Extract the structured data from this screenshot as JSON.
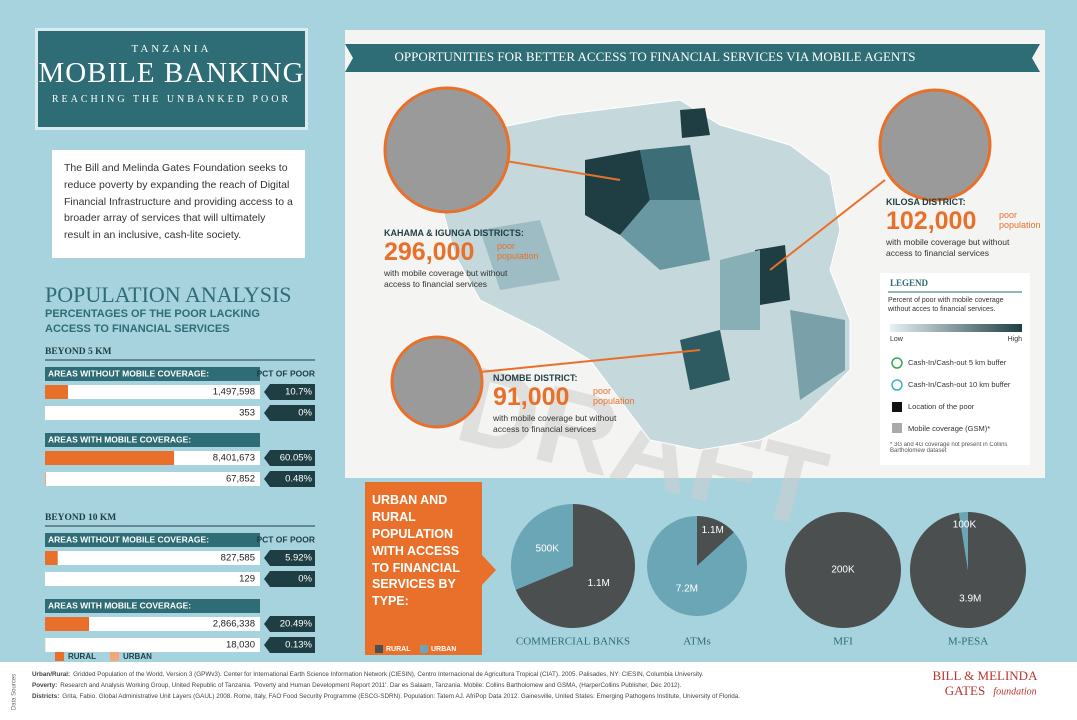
{
  "header": {
    "kicker": "TANZANIA",
    "title": "MOBILE BANKING",
    "subtitle": "REACHING THE UNBANKED POOR"
  },
  "intro": "The Bill and Melinda Gates Foundation seeks to reduce poverty by expanding the reach of Digital Financial Infrastructure and providing access to a broader array of services that will ultimately result in an inclusive, cash-lite society.",
  "population": {
    "title": "POPULATION ANALYSIS",
    "subtitle": "PERCENTAGES OF THE POOR LACKING ACCESS TO FINANCIAL SERVICES",
    "pct_heading": "PCT OF POOR",
    "xlim": [
      0,
      100
    ],
    "sections": [
      {
        "title": "BEYOND 5 KM",
        "groups": [
          {
            "title": "AREAS WITHOUT MOBILE COVERAGE:",
            "rows": [
              {
                "color": "#e8702a",
                "population": {
                  "value": 1497598,
                  "label": "1,497,598"
                },
                "pct": {
                  "value": 10.7,
                  "label": "10.7%"
                }
              },
              {
                "color": "#f4a679",
                "population": {
                  "value": 353,
                  "label": "353"
                },
                "pct": {
                  "value": 0,
                  "label": "0%"
                }
              }
            ]
          },
          {
            "title": "AREAS WITH MOBILE COVERAGE:",
            "rows": [
              {
                "color": "#e8702a",
                "population": {
                  "value": 8401673,
                  "label": "8,401,673"
                },
                "pct": {
                  "value": 60.05,
                  "label": "60.05%"
                }
              },
              {
                "color": "#f4a679",
                "population": {
                  "value": 67852,
                  "label": "67,852"
                },
                "pct": {
                  "value": 0.48,
                  "label": "0.48%"
                }
              }
            ]
          }
        ]
      },
      {
        "title": "BEYOND 10 KM",
        "groups": [
          {
            "title": "AREAS WITHOUT MOBILE COVERAGE:",
            "rows": [
              {
                "color": "#e8702a",
                "population": {
                  "value": 827585,
                  "label": "827,585"
                },
                "pct": {
                  "value": 5.92,
                  "label": "5.92%"
                }
              },
              {
                "color": "#f4a679",
                "population": {
                  "value": 129,
                  "label": "129"
                },
                "pct": {
                  "value": 0,
                  "label": "0%"
                }
              }
            ]
          },
          {
            "title": "AREAS WITH MOBILE COVERAGE:",
            "rows": [
              {
                "color": "#e8702a",
                "population": {
                  "value": 2866338,
                  "label": "2,866,338"
                },
                "pct": {
                  "value": 20.49,
                  "label": "20.49%"
                }
              },
              {
                "color": "#f4a679",
                "population": {
                  "value": 18030,
                  "label": "18,030"
                },
                "pct": {
                  "value": 0.13,
                  "label": "0.13%"
                }
              }
            ]
          }
        ]
      }
    ],
    "legend": [
      {
        "name": "RURAL",
        "color": "#e8702a"
      },
      {
        "name": "URBAN",
        "color": "#f4a679"
      }
    ]
  },
  "map": {
    "title": "OPPORTUNITIES FOR BETTER ACCESS TO FINANCIAL SERVICES VIA MOBILE AGENTS",
    "callouts": [
      {
        "title": "KAHAMA & IGUNGA DISTRICTS:",
        "number": "296,000",
        "unit": "poor population",
        "note": "with mobile coverage but without access to financial services"
      },
      {
        "title": "KILOSA DISTRICT:",
        "number": "102,000",
        "unit": "poor population",
        "note": "with mobile coverage but without access to financial services"
      },
      {
        "title": "NJOMBE DISTRICT:",
        "number": "91,000",
        "unit": "poor population",
        "note": "with mobile coverage but without access to financial services"
      }
    ],
    "legend": {
      "title": "LEGEND",
      "scale_title": "Percent of poor with mobile coverage without acces to financial services.",
      "low": "Low",
      "high": "High",
      "items": [
        "Cash-In/Cash-out 5 km buffer",
        "Cash-In/Cash-out 10 km buffer",
        "Location of the poor",
        "Mobile coverage (GSM)*"
      ],
      "note": "* 3G and 4G coverage not present in Collins Bartholomew dataset"
    },
    "watermark": "DRAFT"
  },
  "access": {
    "title": "URBAN AND RURAL POPULATION WITH ACCESS TO FINANCIAL SERVICES BY TYPE:",
    "legend": {
      "rural": {
        "name": "RURAL",
        "color": "#4b4f50"
      },
      "urban": {
        "name": "URBAN",
        "color": "#6ba6b6"
      }
    },
    "pies": [
      {
        "name": "COMMERCIAL BANKS",
        "rural": {
          "value": 1100000,
          "label": "1.1M"
        },
        "urban": {
          "value": 500000,
          "label": "500K"
        }
      },
      {
        "name": "ATMs",
        "rural": {
          "value": 1100000,
          "label": "1.1M"
        },
        "urban": {
          "value": 7200000,
          "label": "7.2M"
        }
      },
      {
        "name": "MFI",
        "rural": {
          "value": 200000,
          "label": "200K"
        }
      },
      {
        "name": "M-PESA",
        "rural": {
          "value": 3900000,
          "label": "3.9M"
        },
        "urban": {
          "value": 100000,
          "label": "100K"
        }
      }
    ]
  },
  "footer": {
    "side_label": "Data Sources",
    "sources": [
      {
        "label": "Urban/Rural:",
        "text": "Gridded Population of the World, Version 3 (GPWv3). Center for International Earth Science Information Network (CIESIN), Centro Internacional de Agricultura Tropical (CIAT). 2005. Palisades, NY: CIESIN, Columbia University."
      },
      {
        "label": "Poverty:",
        "text": "Research and Analysis Working Group, United Republic of Tanzania. 'Poverty and Human Development Report 2011'. Dar es Salaam, Tanzania. Mobile: Collins Bartholomew and GSMA, (HarperCollins Publisher, Dec 2012)."
      },
      {
        "label": "Districts:",
        "text": "Grita, Fabio. Global Administrative Unit Layers (GAUL) 2008. Rome, Italy, FAO Food Security Programme (ESCG-SDRN). Population: Tatem AJ. AfriPop Data 2012. Gainesville, United States: Emerging Pathogens Institute, University of Florida."
      }
    ],
    "logo": "BILL & MELINDA",
    "logo2": "GATES",
    "logo3": "foundation"
  }
}
